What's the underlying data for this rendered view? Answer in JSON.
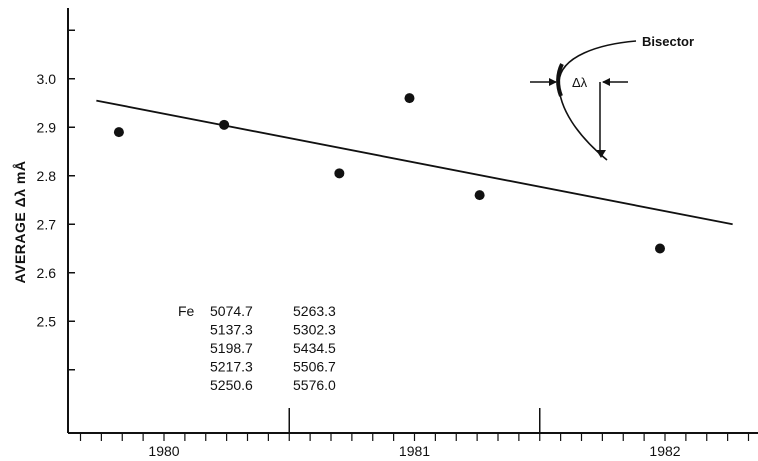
{
  "chart_data": {
    "type": "scatter",
    "title": "",
    "xlabel": "",
    "ylabel": "AVERAGE Δλ mÅ",
    "grid": false,
    "xlim": [
      1979.55,
      1982.55
    ],
    "ylim": [
      2.3,
      3.3
    ],
    "x_ticks": [
      1980,
      1981,
      1982
    ],
    "y_ticks": [
      2.5,
      2.6,
      2.7,
      2.8,
      2.9,
      3.0
    ],
    "y_tick_labels": [
      "2.5",
      "2.6",
      "2.7",
      "2.8",
      "2.9",
      "3.0"
    ],
    "x_tick_labels": [
      "1980",
      "1981",
      "1982"
    ],
    "series": [
      {
        "x": [
          1979.82,
          1980.24,
          1980.7,
          1980.98,
          1981.26,
          1981.98
        ],
        "y": [
          2.89,
          2.905,
          2.805,
          2.96,
          2.76,
          2.65
        ]
      }
    ],
    "fit_line": {
      "x": [
        1979.73,
        1982.27
      ],
      "y": [
        2.955,
        2.7
      ]
    },
    "fe_lines": {
      "label": "Fe",
      "column1": [
        "5074.7",
        "5137.3",
        "5198.7",
        "5217.3",
        "5250.6"
      ],
      "column2": [
        "5263.3",
        "5302.3",
        "5434.5",
        "5506.7",
        "5576.0"
      ]
    },
    "inset": {
      "bisector_label": "Bisector",
      "delta_label": "Δλ"
    }
  }
}
